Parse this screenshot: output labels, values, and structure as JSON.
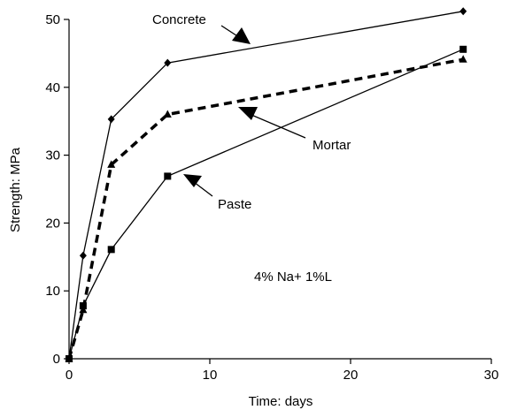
{
  "chart_data": {
    "type": "line",
    "title": "",
    "xlabel": "Time: days",
    "ylabel": "Strength: MPa",
    "xlim": [
      0,
      30
    ],
    "ylim": [
      0,
      50
    ],
    "xticks": [
      0,
      10,
      20,
      30
    ],
    "yticks": [
      0,
      10,
      20,
      30,
      40,
      50
    ],
    "grid": false,
    "legend": "none",
    "annotation": "4% Na+ 1%L",
    "series": [
      {
        "name": "Concrete",
        "style": "solid",
        "marker": "diamond",
        "color": "#000000",
        "x": [
          0,
          1,
          3,
          7,
          28
        ],
        "y": [
          0,
          15.2,
          35.3,
          43.6,
          51.2
        ]
      },
      {
        "name": "Mortar",
        "style": "dashed",
        "marker": "triangle",
        "color": "#000000",
        "x": [
          0,
          1,
          3,
          7,
          28
        ],
        "y": [
          0,
          7.2,
          28.6,
          36.0,
          44.1
        ]
      },
      {
        "name": "Paste",
        "style": "solid",
        "marker": "square",
        "color": "#000000",
        "x": [
          0,
          1,
          3,
          7,
          28
        ],
        "y": [
          0,
          7.8,
          16.1,
          26.9,
          45.6
        ]
      }
    ]
  }
}
